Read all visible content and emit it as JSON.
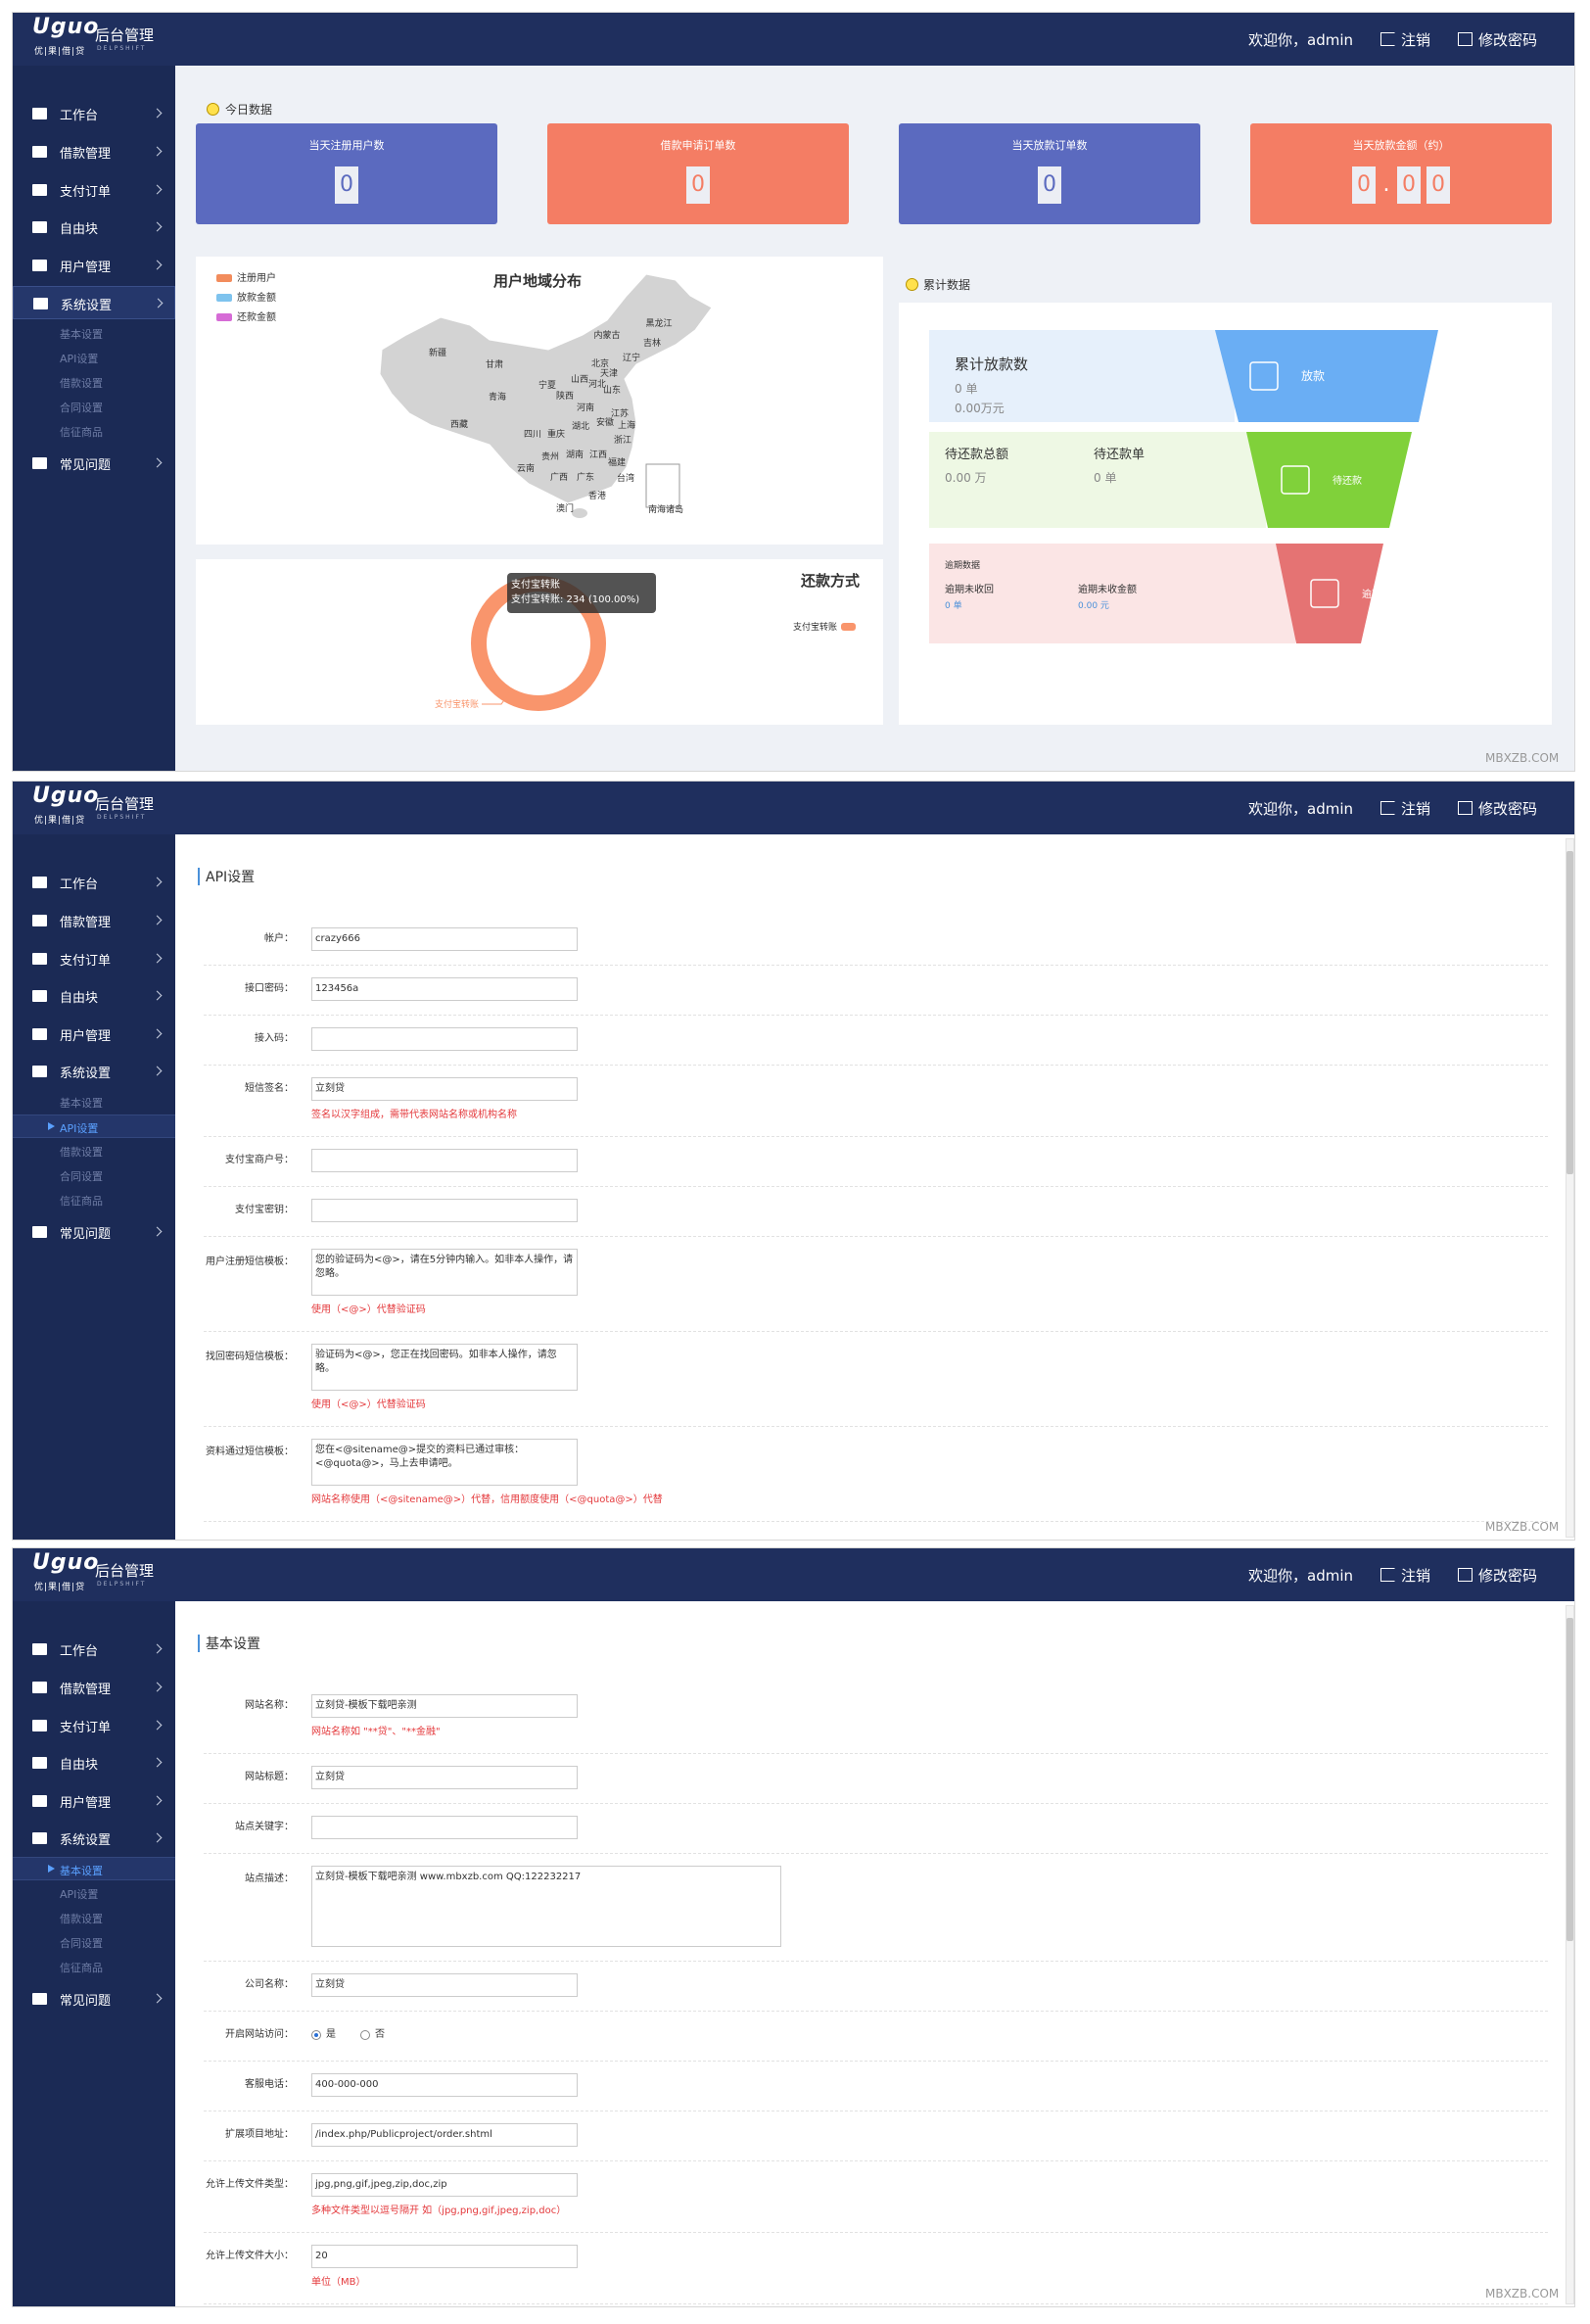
{
  "header": {
    "logo": "Uguo",
    "logo_sub": "优|果|借|贷",
    "title": "后台管理",
    "brand": "DELPSHIFT",
    "welcome": "欢迎你，admin",
    "logout": "注销",
    "change_password": "修改密码"
  },
  "sidebar": {
    "menu": [
      "工作台",
      "借款管理",
      "支付订单",
      "自由块",
      "用户管理",
      "系统设置",
      "常见问题"
    ],
    "submenu": [
      "基本设置",
      "API设置",
      "借款设置",
      "合同设置",
      "信征商品"
    ]
  },
  "watermark": "MBXZB.COM",
  "panels": [
    {
      "active_submenu": null,
      "dashboard": {
        "today": {
          "label": "今日数据",
          "cards": [
            {
              "label": "当天注册用户数",
              "value": "0",
              "color": "#5b6abf"
            },
            {
              "label": "借款申请订单数",
              "value": "0",
              "color": "#f47d64"
            },
            {
              "label": "当天放款订单数",
              "value": "0",
              "color": "#5b6abf"
            },
            {
              "label": "当天放款金额（约）",
              "value": "0.00",
              "color": "#f47d64"
            }
          ]
        },
        "map": {
          "title": "用户地域分布",
          "legend": [
            {
              "name": "注册用户",
              "color": "#f28c5c"
            },
            {
              "name": "放款金额",
              "color": "#7ec3ee"
            },
            {
              "name": "还款金额",
              "color": "#d66bd6"
            }
          ],
          "regions": [
            "黑龙江",
            "吉林",
            "辽宁",
            "内蒙古",
            "新疆",
            "甘肃",
            "宁夏",
            "北京",
            "天津",
            "山西",
            "河北",
            "山东",
            "青海",
            "陕西",
            "河南",
            "江苏",
            "安徽",
            "上海",
            "西藏",
            "四川",
            "重庆",
            "湖北",
            "浙江",
            "湖南",
            "江西",
            "贵州",
            "福建",
            "云南",
            "广西",
            "广东",
            "台湾",
            "澳门",
            "香港",
            "南海诸岛"
          ]
        },
        "repayment": {
          "type": "pie",
          "title": "还款方式",
          "categories": [
            "支付宝转账"
          ],
          "values": [
            234
          ],
          "color": "#f9956c",
          "tooltip": "支付宝转账: 234 (100.00%)"
        },
        "totals": {
          "label": "累计数据",
          "rows": [
            {
              "items": [
                {
                  "title": "累计放款数",
                  "lines": [
                    "0 单",
                    "0.00万元"
                  ]
                }
              ],
              "tag": "放款",
              "color": "#6aaef4",
              "bg": "#e6f0fb"
            },
            {
              "items": [
                {
                  "title": "待还款总额",
                  "lines": [
                    "0.00 万"
                  ]
                },
                {
                  "title": "待还款单",
                  "lines": [
                    "0 单"
                  ]
                }
              ],
              "tag": "待还款",
              "color": "#80d13a",
              "bg": "#eef8e4"
            },
            {
              "heading": "逾期数据",
              "items": [
                {
                  "title": "逾期未收回",
                  "lines": [
                    "0 单"
                  ]
                },
                {
                  "title": "逾期未收金额",
                  "lines": [
                    "0.00 元"
                  ]
                }
              ],
              "tag": "逾期",
              "color": "#e57373",
              "bg": "#fbe5e5"
            }
          ]
        }
      }
    },
    {
      "active_submenu": 1,
      "form": {
        "title": "API设置",
        "fields": [
          {
            "label": "帐户：",
            "value": "crazy666"
          },
          {
            "label": "接口密码：",
            "value": "123456a"
          },
          {
            "label": "接入码："
          },
          {
            "label": "短信签名：",
            "value": "立刻贷",
            "hint": "签名以汉字组成，需带代表网站名称或机构名称"
          },
          {
            "label": "支付宝商户号："
          },
          {
            "label": "支付宝密钥："
          },
          {
            "label": "用户注册短信模板：",
            "value": "您的验证码为<@>，请在5分钟内输入。如非本人操作，请忽略。",
            "rows": 2,
            "hint": "使用（<@>）代替验证码"
          },
          {
            "label": "找回密码短信模板：",
            "value": "验证码为<@>，您正在找回密码。如非本人操作，请忽略。",
            "rows": 2,
            "hint": "使用（<@>）代替验证码"
          },
          {
            "label": "资料通过短信模板：",
            "value": "您在<@sitename@>提交的资料已通过审核：<@quota@>，马上去申请吧。",
            "rows": 2,
            "hint": "网站名称使用（<@sitename@>）代替，信用额度使用（<@quota@>）代替"
          }
        ]
      }
    },
    {
      "active_submenu": 0,
      "form": {
        "title": "基本设置",
        "fields": [
          {
            "label": "网站名称：",
            "value": "立刻贷-模板下载吧亲测",
            "hint": "网站名称如 \"**贷\"、\"**金融\""
          },
          {
            "label": "网站标题：",
            "value": "立刻贷"
          },
          {
            "label": "站点关键字："
          },
          {
            "label": "站点描述：",
            "value": "立刻贷-模板下载吧亲测 www.mbxzb.com  QQ:122232217",
            "rows": 4
          },
          {
            "label": "公司名称：",
            "value": "立刻贷"
          },
          {
            "label": "开启网站访问：",
            "options": [
              "是",
              "否"
            ],
            "selected": 0
          },
          {
            "label": "客服电话：",
            "value": "400-000-000"
          },
          {
            "label": "扩展项目地址：",
            "value": "/index.php/Publicproject/order.shtml"
          },
          {
            "label": "允许上传文件类型：",
            "value": "jpg,png,gif,jpeg,zip,doc,zip",
            "hint": "多种文件类型以逗号隔开 如（jpg,png,gif,jpeg,zip,doc）"
          },
          {
            "label": "允许上传文件大小：",
            "value": "20",
            "hint": "单位（MB）"
          }
        ]
      }
    }
  ]
}
